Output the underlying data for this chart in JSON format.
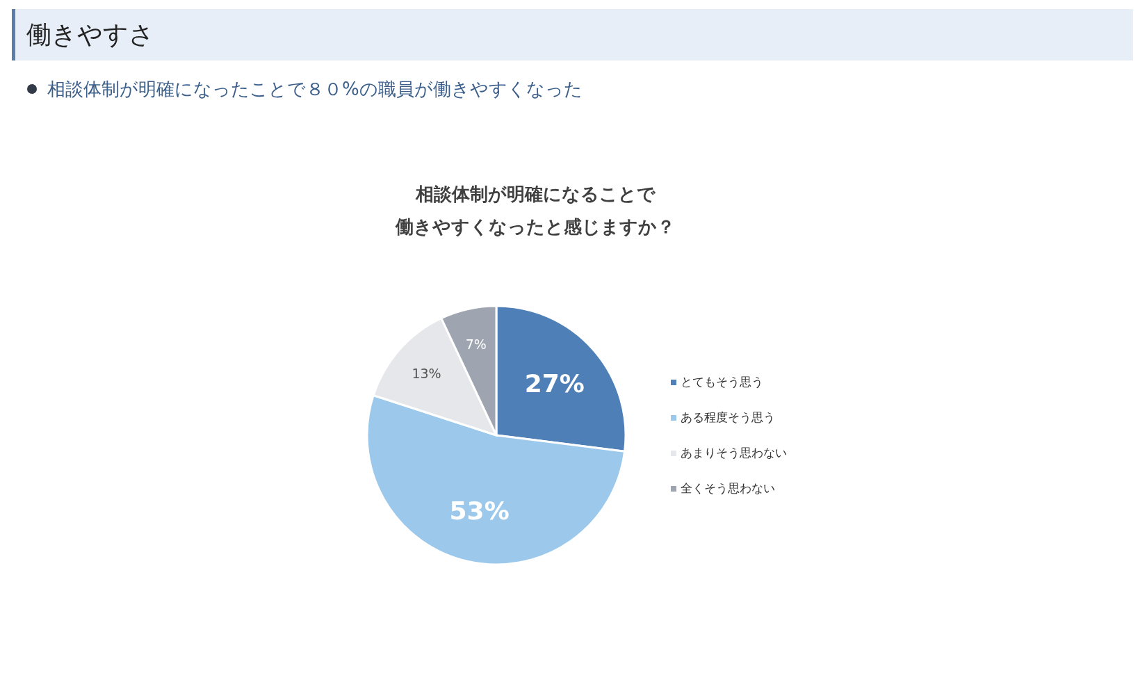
{
  "chart_data": {
    "type": "pie",
    "title": "働きやすさ",
    "subtitle": "相談体制が明確になったことで８０%の職員が働きやすくなった",
    "annotations": [
      "相談体制が明確になることで",
      "働きやすくなったと感じますか？"
    ],
    "categories": [
      "とてもそう思う",
      "ある程度そう思う",
      "あまりそう思わない",
      "全くそう思わない"
    ],
    "values": [
      27,
      53,
      13,
      7
    ],
    "colors": [
      "#4e7fb6",
      "#9cc9eb",
      "#e5e7eb",
      "#9ea5b0"
    ],
    "value_labels": [
      "27%",
      "53%",
      "13%",
      "7%"
    ],
    "legend": "right"
  }
}
